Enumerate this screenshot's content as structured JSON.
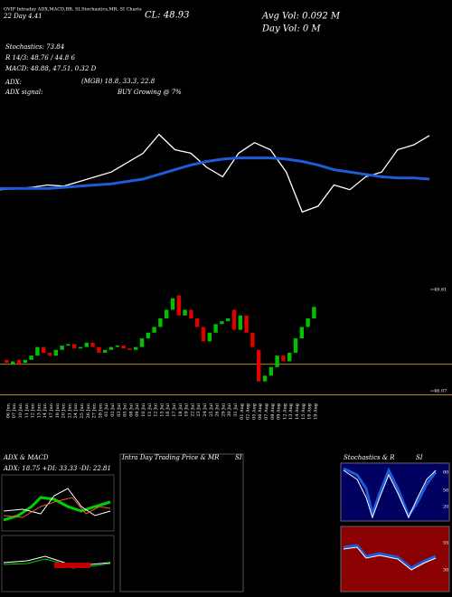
{
  "header": {
    "line1": "GVIP Intraday ADX,MACD,BB, SI,Stochastics,MR, SI Charts",
    "close": "CL: 48.93",
    "change": "22 Day 4.41",
    "avg_vol": "Avg Vol: 0.092 M",
    "day_vol": "Day Vol: 0 M",
    "stoch": "Stochastics: 73.84",
    "r": "R 14/3: 48.76 / 44.8 6",
    "macd": "MACD: 48.88, 47.51, 0.32 D",
    "adx": "ADX:",
    "mgb": "(MGB) 18.8, 33.3, 22.8",
    "adx_signal": "ADX signal:",
    "buy": "BUY Growing @ 7%"
  },
  "chart_data": {
    "type": "candlestick",
    "top_panel": {
      "ylim": [
        0,
        100
      ],
      "series": [
        {
          "name": "price",
          "color": "#ffffff",
          "values": [
            31,
            32,
            33,
            35,
            34,
            38,
            42,
            46,
            54,
            62,
            78,
            65,
            62,
            50,
            42,
            62,
            71,
            65,
            46,
            12,
            17,
            35,
            31,
            42,
            46,
            65,
            69,
            77
          ]
        },
        {
          "name": "average",
          "color": "#1e5bd8",
          "values": [
            32,
            32,
            32,
            32,
            33,
            34,
            35,
            36,
            38,
            40,
            44,
            48,
            52,
            55,
            57,
            58,
            58,
            58,
            57,
            55,
            52,
            48,
            46,
            44,
            42,
            41,
            41,
            40
          ]
        }
      ]
    },
    "categories": [
      "06 Jun",
      "07 Jun",
      "10 Jun",
      "11 Jun",
      "12 Jun",
      "13 Jun",
      "14 Jun",
      "17 Jun",
      "18 Jun",
      "20 Jun",
      "21 Jun",
      "24 Jun",
      "25 Jun",
      "26 Jun",
      "27 Jun",
      "28 Jun",
      "01 Jul",
      "02 Jul",
      "03 Jul",
      "05 Jul",
      "08 Jul",
      "09 Jul",
      "10 Jul",
      "11 Jul",
      "12 Jul",
      "15 Jul",
      "16 Jul",
      "17 Jul",
      "18 Jul",
      "19 Jul",
      "22 Jul",
      "23 Jul",
      "24 Jul",
      "25 Jul",
      "26 Jul",
      "29 Jul",
      "30 Jul",
      "31 Jul",
      "01 Aug",
      "02 Aug",
      "05 Aug",
      "06 Aug",
      "07 Aug",
      "08 Aug",
      "09 Aug",
      "12 Aug",
      "13 Aug",
      "14 Aug",
      "15 Aug",
      "16 Aug",
      "19 Aug"
    ],
    "open": [
      47.15,
      47.0,
      47.15,
      47.05,
      47.15,
      47.3,
      47.6,
      47.4,
      47.3,
      47.5,
      47.65,
      47.7,
      47.55,
      47.6,
      47.75,
      47.6,
      47.4,
      47.5,
      47.6,
      47.65,
      47.55,
      47.5,
      47.6,
      47.9,
      48.1,
      48.3,
      48.6,
      48.9,
      49.4,
      48.7,
      48.9,
      48.6,
      48.3,
      47.8,
      48.1,
      48.4,
      48.5,
      48.9,
      48.2,
      48.7,
      48.1,
      47.5,
      46.4,
      46.6,
      46.9,
      47.3,
      47.1,
      47.4,
      47.9,
      48.3,
      48.6
    ],
    "close": [
      47.05,
      47.1,
      47.0,
      47.15,
      47.3,
      47.6,
      47.4,
      47.3,
      47.5,
      47.65,
      47.7,
      47.55,
      47.6,
      47.75,
      47.6,
      47.4,
      47.5,
      47.6,
      47.65,
      47.55,
      47.5,
      47.6,
      47.9,
      48.1,
      48.3,
      48.6,
      48.9,
      49.3,
      48.7,
      48.9,
      48.6,
      48.3,
      47.8,
      48.1,
      48.4,
      48.5,
      48.6,
      48.2,
      48.7,
      48.1,
      47.6,
      46.4,
      46.6,
      46.9,
      47.3,
      47.1,
      47.4,
      47.9,
      48.3,
      48.6,
      49.0
    ],
    "ylim": [
      45.82,
      50.24
    ],
    "yticks": [
      49.61,
      46.07
    ],
    "levels": [
      47.0,
      45.93
    ],
    "up_color": "#00c000",
    "down_color": "#e00000",
    "level_color": "#b8860b"
  },
  "panels": {
    "adx_title": "ADX & MACD",
    "adx_values": "ADX: 18.75 +DI: 33.33 -DI: 22.81",
    "intraday_title": "Intra Day Trading Price & MR",
    "intraday_si": "SI",
    "stoch_title": "Stochastics & R",
    "stoch_si": "SI",
    "stoch_ticks": [
      "80",
      "50",
      "20"
    ],
    "rsi_ticks": [
      "55",
      "30"
    ]
  }
}
